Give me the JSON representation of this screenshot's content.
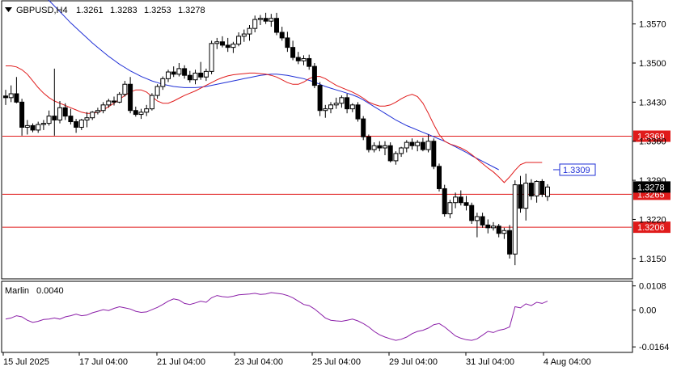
{
  "header": {
    "symbol": "GBPUSD,H4",
    "open": "1.3261",
    "high": "1.3283",
    "low": "1.3253",
    "close": "1.3278"
  },
  "indicator": {
    "name": "Marlin",
    "value": "0.0040"
  },
  "colors": {
    "bull": "#000000",
    "bear": "#000000",
    "ma_blue": "#1f2fd6",
    "ma_red": "#e01b1b",
    "level": "#e01b1b",
    "osc": "#8b1fa8",
    "price_tag": "#000000"
  },
  "chart_data": {
    "type": "candlestick",
    "y_axis_price": {
      "ticks": [
        "1.3570",
        "1.3500",
        "1.3430",
        "1.3360",
        "1.3290",
        "1.3220",
        "1.3150"
      ],
      "range": [
        1.3115,
        1.361
      ]
    },
    "y_axis_osc": {
      "ticks": [
        "0.0108",
        "0.00",
        "-0.0164"
      ],
      "range": [
        -0.0185,
        0.0125
      ]
    },
    "x_axis": {
      "labels": [
        "15 Jul 2025",
        "17 Jul 04:00",
        "21 Jul 04:00",
        "23 Jul 04:00",
        "25 Jul 04:00",
        "29 Jul 04:00",
        "31 Jul 04:00",
        "4 Aug 04:00"
      ]
    },
    "levels": [
      {
        "value": 1.3369,
        "label": "1.3369"
      },
      {
        "value": 1.3265,
        "label": "1.3265"
      },
      {
        "value": 1.3206,
        "label": "1.3206"
      }
    ],
    "tags": {
      "current": "1.3278",
      "blue_ma": "1.3309"
    },
    "candles": [
      [
        1.3441,
        1.3452,
        1.3425,
        1.3438
      ],
      [
        1.3438,
        1.346,
        1.343,
        1.3445
      ],
      [
        1.3445,
        1.3475,
        1.3428,
        1.343
      ],
      [
        1.343,
        1.3436,
        1.337,
        1.3385
      ],
      [
        1.3385,
        1.3398,
        1.3372,
        1.3388
      ],
      [
        1.3388,
        1.3392,
        1.3376,
        1.338
      ],
      [
        1.338,
        1.3395,
        1.3375,
        1.339
      ],
      [
        1.339,
        1.3398,
        1.338,
        1.3392
      ],
      [
        1.3392,
        1.3415,
        1.3388,
        1.3405
      ],
      [
        1.3405,
        1.349,
        1.337,
        1.3398
      ],
      [
        1.3398,
        1.3432,
        1.3392,
        1.342
      ],
      [
        1.342,
        1.3428,
        1.3398,
        1.3405
      ],
      [
        1.3405,
        1.3418,
        1.339,
        1.3395
      ],
      [
        1.3395,
        1.34,
        1.3375,
        1.3385
      ],
      [
        1.3385,
        1.34,
        1.338,
        1.3398
      ],
      [
        1.3398,
        1.3412,
        1.3385,
        1.3402
      ],
      [
        1.3402,
        1.3414,
        1.3398,
        1.3412
      ],
      [
        1.3412,
        1.342,
        1.3408,
        1.3415
      ],
      [
        1.3415,
        1.343,
        1.341,
        1.3425
      ],
      [
        1.3425,
        1.3436,
        1.342,
        1.3432
      ],
      [
        1.3432,
        1.344,
        1.3424,
        1.343
      ],
      [
        1.343,
        1.3448,
        1.3428,
        1.3444
      ],
      [
        1.3444,
        1.3468,
        1.344,
        1.3462
      ],
      [
        1.3462,
        1.3475,
        1.341,
        1.3415
      ],
      [
        1.3415,
        1.3422,
        1.3404,
        1.3408
      ],
      [
        1.3408,
        1.3418,
        1.34,
        1.3412
      ],
      [
        1.3412,
        1.3425,
        1.3405,
        1.3418
      ],
      [
        1.3418,
        1.3446,
        1.3415,
        1.3442
      ],
      [
        1.3442,
        1.3462,
        1.3436,
        1.3458
      ],
      [
        1.3458,
        1.3476,
        1.3452,
        1.3472
      ],
      [
        1.3472,
        1.3488,
        1.3466,
        1.3484
      ],
      [
        1.3484,
        1.3494,
        1.3475,
        1.348
      ],
      [
        1.348,
        1.35,
        1.3476,
        1.349
      ],
      [
        1.349,
        1.3496,
        1.3472,
        1.3478
      ],
      [
        1.3478,
        1.3486,
        1.3465,
        1.347
      ],
      [
        1.347,
        1.3488,
        1.3462,
        1.3482
      ],
      [
        1.3482,
        1.3502,
        1.347,
        1.3475
      ],
      [
        1.3475,
        1.349,
        1.3468,
        1.3485
      ],
      [
        1.3485,
        1.354,
        1.348,
        1.3535
      ],
      [
        1.3535,
        1.3545,
        1.3525,
        1.3538
      ],
      [
        1.3538,
        1.3548,
        1.3528,
        1.3532
      ],
      [
        1.3532,
        1.3545,
        1.352,
        1.3528
      ],
      [
        1.3528,
        1.3538,
        1.3518,
        1.3534
      ],
      [
        1.3534,
        1.3555,
        1.353,
        1.3548
      ],
      [
        1.3548,
        1.356,
        1.3538,
        1.3552
      ],
      [
        1.3552,
        1.3568,
        1.354,
        1.3562
      ],
      [
        1.3562,
        1.3585,
        1.3555,
        1.3578
      ],
      [
        1.3578,
        1.3586,
        1.3568,
        1.358
      ],
      [
        1.358,
        1.359,
        1.357,
        1.3575
      ],
      [
        1.3575,
        1.3588,
        1.3565,
        1.358
      ],
      [
        1.358,
        1.359,
        1.355,
        1.3555
      ],
      [
        1.3555,
        1.3565,
        1.354,
        1.3545
      ],
      [
        1.3545,
        1.3556,
        1.352,
        1.3528
      ],
      [
        1.3528,
        1.354,
        1.3505,
        1.351
      ],
      [
        1.351,
        1.352,
        1.3498,
        1.3504
      ],
      [
        1.3504,
        1.3514,
        1.3496,
        1.3508
      ],
      [
        1.3508,
        1.3515,
        1.3488,
        1.3494
      ],
      [
        1.3494,
        1.35,
        1.3455,
        1.346
      ],
      [
        1.346,
        1.3466,
        1.3405,
        1.3415
      ],
      [
        1.3415,
        1.3425,
        1.3402,
        1.3418
      ],
      [
        1.3418,
        1.343,
        1.341,
        1.3425
      ],
      [
        1.3425,
        1.3438,
        1.3418,
        1.3428
      ],
      [
        1.3428,
        1.3442,
        1.342,
        1.3438
      ],
      [
        1.3438,
        1.3445,
        1.341,
        1.3418
      ],
      [
        1.3418,
        1.3428,
        1.3412,
        1.3425
      ],
      [
        1.3425,
        1.343,
        1.3395,
        1.34
      ],
      [
        1.34,
        1.3405,
        1.3362,
        1.3368
      ],
      [
        1.3368,
        1.3372,
        1.334,
        1.3345
      ],
      [
        1.3345,
        1.3358,
        1.334,
        1.3352
      ],
      [
        1.3352,
        1.336,
        1.3342,
        1.3348
      ],
      [
        1.3348,
        1.336,
        1.3335,
        1.3352
      ],
      [
        1.3352,
        1.3358,
        1.3322,
        1.3325
      ],
      [
        1.3325,
        1.3342,
        1.3318,
        1.3338
      ],
      [
        1.3338,
        1.335,
        1.3332,
        1.3348
      ],
      [
        1.3348,
        1.3362,
        1.334,
        1.3358
      ],
      [
        1.3358,
        1.3365,
        1.3345,
        1.3352
      ],
      [
        1.3352,
        1.3362,
        1.3342,
        1.3358
      ],
      [
        1.3358,
        1.3366,
        1.3342,
        1.3345
      ],
      [
        1.3345,
        1.3372,
        1.334,
        1.336
      ],
      [
        1.336,
        1.3365,
        1.331,
        1.3315
      ],
      [
        1.3315,
        1.332,
        1.327,
        1.3275
      ],
      [
        1.3275,
        1.3282,
        1.3225,
        1.323
      ],
      [
        1.323,
        1.3255,
        1.3222,
        1.325
      ],
      [
        1.325,
        1.3268,
        1.324,
        1.326
      ],
      [
        1.326,
        1.3272,
        1.3245,
        1.325
      ],
      [
        1.325,
        1.3262,
        1.3236,
        1.3245
      ],
      [
        1.3245,
        1.325,
        1.3212,
        1.3218
      ],
      [
        1.3218,
        1.3232,
        1.3188,
        1.3225
      ],
      [
        1.3225,
        1.3232,
        1.3205,
        1.321
      ],
      [
        1.321,
        1.322,
        1.3195,
        1.3205
      ],
      [
        1.3205,
        1.3215,
        1.32,
        1.3208
      ],
      [
        1.3208,
        1.3212,
        1.3188,
        1.3195
      ],
      [
        1.3195,
        1.3205,
        1.3185,
        1.32
      ],
      [
        1.32,
        1.321,
        1.315,
        1.3158
      ],
      [
        1.3158,
        1.329,
        1.3138,
        1.3282
      ],
      [
        1.3282,
        1.3298,
        1.3232,
        1.324
      ],
      [
        1.324,
        1.3302,
        1.3218,
        1.3285
      ],
      [
        1.3285,
        1.3292,
        1.3255,
        1.3262
      ],
      [
        1.3262,
        1.329,
        1.325,
        1.3288
      ],
      [
        1.3288,
        1.3292,
        1.326,
        1.3265
      ],
      [
        1.3261,
        1.3283,
        1.3253,
        1.3278
      ]
    ],
    "ma_blue": [
      1.3705,
      1.3692,
      1.368,
      1.3668,
      1.3656,
      1.3645,
      1.3634,
      1.3623,
      1.3612,
      1.3602,
      1.3592,
      1.3582,
      1.3572,
      1.3563,
      1.3554,
      1.3545,
      1.3536,
      1.3528,
      1.352,
      1.3512,
      1.3505,
      1.3498,
      1.3492,
      1.3486,
      1.3481,
      1.3476,
      1.3472,
      1.3468,
      1.3465,
      1.3462,
      1.346,
      1.3458,
      1.3457,
      1.3456,
      1.3456,
      1.3456,
      1.3457,
      1.3458,
      1.346,
      1.3462,
      1.3464,
      1.3466,
      1.3468,
      1.347,
      1.3472,
      1.3474,
      1.3476,
      1.3478,
      1.3479,
      1.348,
      1.348,
      1.3479,
      1.3478,
      1.3476,
      1.3474,
      1.3472,
      1.3469,
      1.3466,
      1.3462,
      1.3458,
      1.3455,
      1.3452,
      1.3449,
      1.3446,
      1.3443,
      1.3439,
      1.3434,
      1.3428,
      1.3422,
      1.3416,
      1.341,
      1.3404,
      1.3398,
      1.3393,
      1.3388,
      1.3384,
      1.338,
      1.3376,
      1.3372,
      1.3368,
      1.3364,
      1.336,
      1.3355,
      1.335,
      1.3345,
      1.334,
      1.3334,
      1.3329,
      1.3324,
      1.3319,
      1.3314,
      1.3309,
      null,
      null,
      null,
      null,
      null,
      null,
      null,
      null
    ],
    "ma_red": [
      1.3495,
      1.3495,
      1.3493,
      1.3488,
      1.348,
      1.3468,
      1.3456,
      1.3446,
      1.3438,
      1.3432,
      1.3428,
      1.3424,
      1.342,
      1.3416,
      1.3412,
      1.341,
      1.341,
      1.3412,
      1.3416,
      1.3422,
      1.3428,
      1.3435,
      1.3442,
      1.3448,
      1.3452,
      1.3452,
      1.3448,
      1.344,
      1.3432,
      1.3428,
      1.3428,
      1.3432,
      1.3437,
      1.3442,
      1.3446,
      1.345,
      1.3455,
      1.346,
      1.3465,
      1.347,
      1.3474,
      1.3477,
      1.3479,
      1.348,
      1.3481,
      1.3482,
      1.3482,
      1.3481,
      1.348,
      1.3478,
      1.3475,
      1.347,
      1.3465,
      1.3462,
      1.3462,
      1.3466,
      1.3472,
      1.3476,
      1.3476,
      1.3472,
      1.3466,
      1.346,
      1.3456,
      1.3452,
      1.3448,
      1.3443,
      1.3437,
      1.343,
      1.3426,
      1.3423,
      1.3423,
      1.3425,
      1.343,
      1.3436,
      1.3441,
      1.3444,
      1.344,
      1.3428,
      1.341,
      1.339,
      1.3372,
      1.336,
      1.3355,
      1.3352,
      1.3348,
      1.3343,
      1.3336,
      1.3328,
      1.332,
      1.3312,
      1.3305,
      1.3296,
      1.3286,
      1.3296,
      1.3308,
      1.3318,
      1.3322,
      1.3322,
      1.3322,
      1.3322
    ],
    "oscillator": [
      -0.004,
      -0.0035,
      -0.0025,
      -0.003,
      -0.0045,
      -0.0055,
      -0.005,
      -0.0042,
      -0.004,
      -0.0035,
      -0.004,
      -0.003,
      -0.0025,
      -0.0018,
      -0.0025,
      -0.0022,
      -0.0012,
      -0.0005,
      0.0002,
      -0.0002,
      0.0008,
      0.0015,
      0.001,
      0.0005,
      -0.0005,
      -0.001,
      -0.0008,
      0.0002,
      0.0012,
      0.0025,
      0.004,
      0.005,
      0.0045,
      0.003,
      0.0025,
      0.0032,
      0.004,
      0.0035,
      0.0055,
      0.0065,
      0.006,
      0.0058,
      0.0062,
      0.0068,
      0.007,
      0.0072,
      0.0075,
      0.007,
      0.0072,
      0.0078,
      0.0075,
      0.0072,
      0.0065,
      0.0055,
      0.004,
      0.0025,
      0.002,
      0.0005,
      -0.0015,
      -0.0035,
      -0.0045,
      -0.0048,
      -0.005,
      -0.0045,
      -0.004,
      -0.0048,
      -0.006,
      -0.0075,
      -0.0095,
      -0.011,
      -0.012,
      -0.0128,
      -0.0135,
      -0.013,
      -0.012,
      -0.0105,
      -0.0095,
      -0.009,
      -0.008,
      -0.0065,
      -0.006,
      -0.0075,
      -0.0095,
      -0.0115,
      -0.0125,
      -0.0132,
      -0.0135,
      -0.0128,
      -0.0112,
      -0.0095,
      -0.01,
      -0.009,
      -0.0085,
      -0.0075,
      0.0015,
      0.001,
      0.0028,
      0.002,
      0.0035,
      0.003,
      0.004
    ]
  }
}
